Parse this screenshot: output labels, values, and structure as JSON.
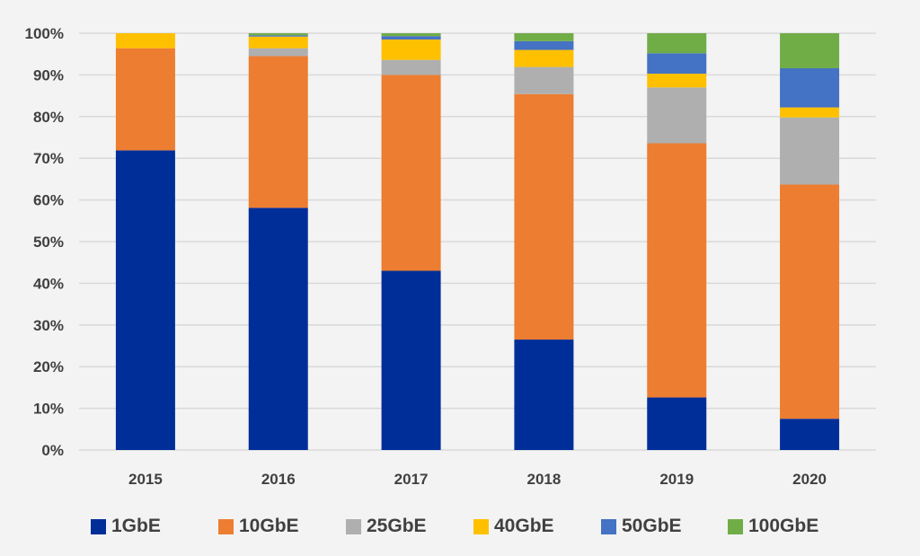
{
  "chart_data": {
    "type": "bar",
    "stacked": true,
    "percent": true,
    "categories": [
      "2015",
      "2016",
      "2017",
      "2018",
      "2019",
      "2020"
    ],
    "series": [
      {
        "name": "1GbE",
        "color": "#002e99",
        "values": [
          71.9,
          58.1,
          43.0,
          26.5,
          12.6,
          7.5
        ]
      },
      {
        "name": "10GbE",
        "color": "#ed7d31",
        "values": [
          24.5,
          36.4,
          47.0,
          58.9,
          61.0,
          56.2
        ]
      },
      {
        "name": "25GbE",
        "color": "#afafaf",
        "values": [
          0.0,
          1.9,
          3.6,
          6.5,
          13.4,
          16.1
        ]
      },
      {
        "name": "40GbE",
        "color": "#ffc000",
        "values": [
          3.6,
          2.8,
          4.9,
          4.1,
          3.3,
          2.4
        ]
      },
      {
        "name": "50GbE",
        "color": "#4472c4",
        "values": [
          0.0,
          0.3,
          0.8,
          2.1,
          4.9,
          9.4
        ]
      },
      {
        "name": "100GbE",
        "color": "#70ad47",
        "values": [
          0.0,
          0.5,
          0.7,
          1.9,
          4.8,
          8.4
        ]
      }
    ],
    "ylim": [
      0,
      100
    ],
    "yticks": [
      "0%",
      "10%",
      "20%",
      "30%",
      "40%",
      "50%",
      "60%",
      "70%",
      "80%",
      "90%",
      "100%"
    ],
    "grid": true,
    "legend_position": "bottom",
    "title": "",
    "xlabel": "",
    "ylabel": ""
  }
}
